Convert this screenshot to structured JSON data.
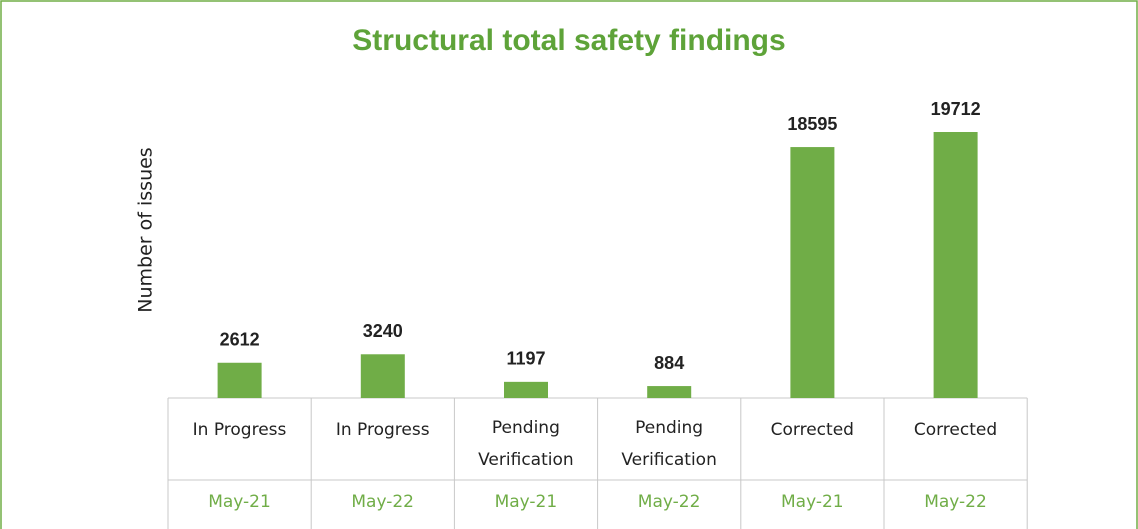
{
  "chart_data": {
    "type": "bar",
    "title": "Structural total safety findings",
    "ylabel": "Number of issues",
    "categories": [
      "In Progress",
      "In Progress",
      "Pending Verification",
      "Pending Verification",
      "Corrected",
      "Corrected"
    ],
    "periods": [
      "May-21",
      "May-22",
      "May-21",
      "May-22",
      "May-21",
      "May-22"
    ],
    "values": [
      2612,
      3240,
      1197,
      884,
      18595,
      19712
    ],
    "color": "#70ad47"
  }
}
